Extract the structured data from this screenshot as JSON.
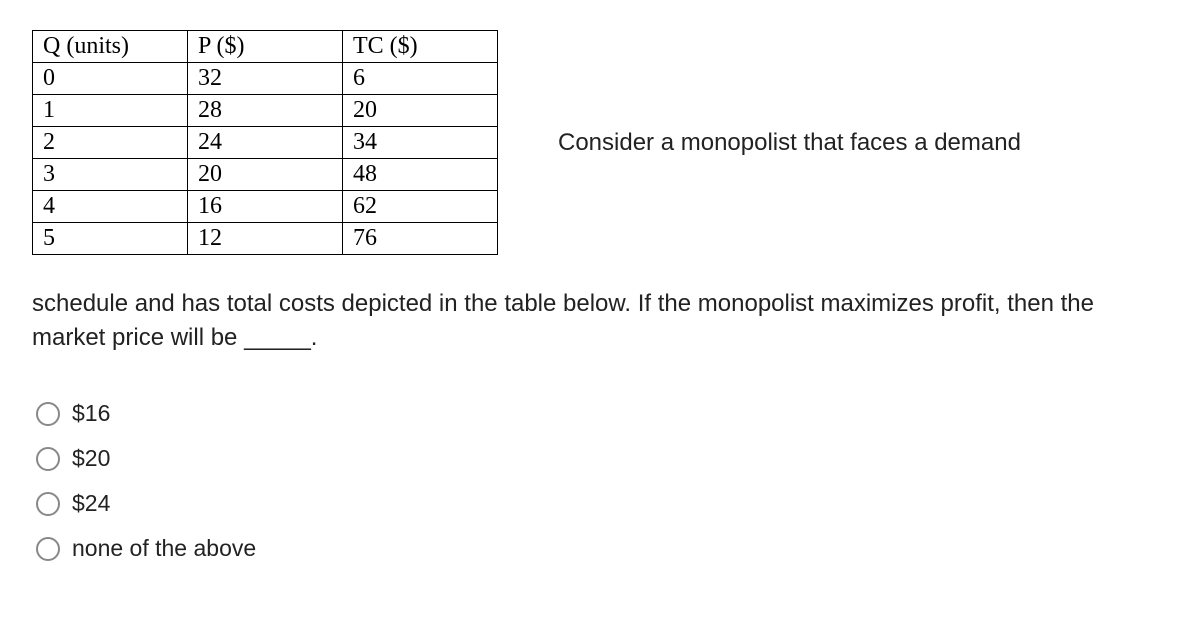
{
  "table": {
    "columns": [
      "Q (units)",
      "P ($)",
      "TC ($)"
    ],
    "rows": [
      [
        "0",
        "32",
        "6"
      ],
      [
        "1",
        "28",
        "20"
      ],
      [
        "2",
        "24",
        "34"
      ],
      [
        "3",
        "20",
        "48"
      ],
      [
        "4",
        "16",
        "62"
      ],
      [
        "5",
        "12",
        "76"
      ]
    ],
    "border_color": "#000000",
    "font_family": "Times New Roman"
  },
  "side_text": "Consider a monopolist that faces a demand",
  "question_text": "schedule and has total costs depicted in the table below. If the monopolist maximizes profit, then the market price will be _____.",
  "options": [
    {
      "label": "$16"
    },
    {
      "label": "$20"
    },
    {
      "label": "$24"
    },
    {
      "label": "none of the above"
    }
  ]
}
